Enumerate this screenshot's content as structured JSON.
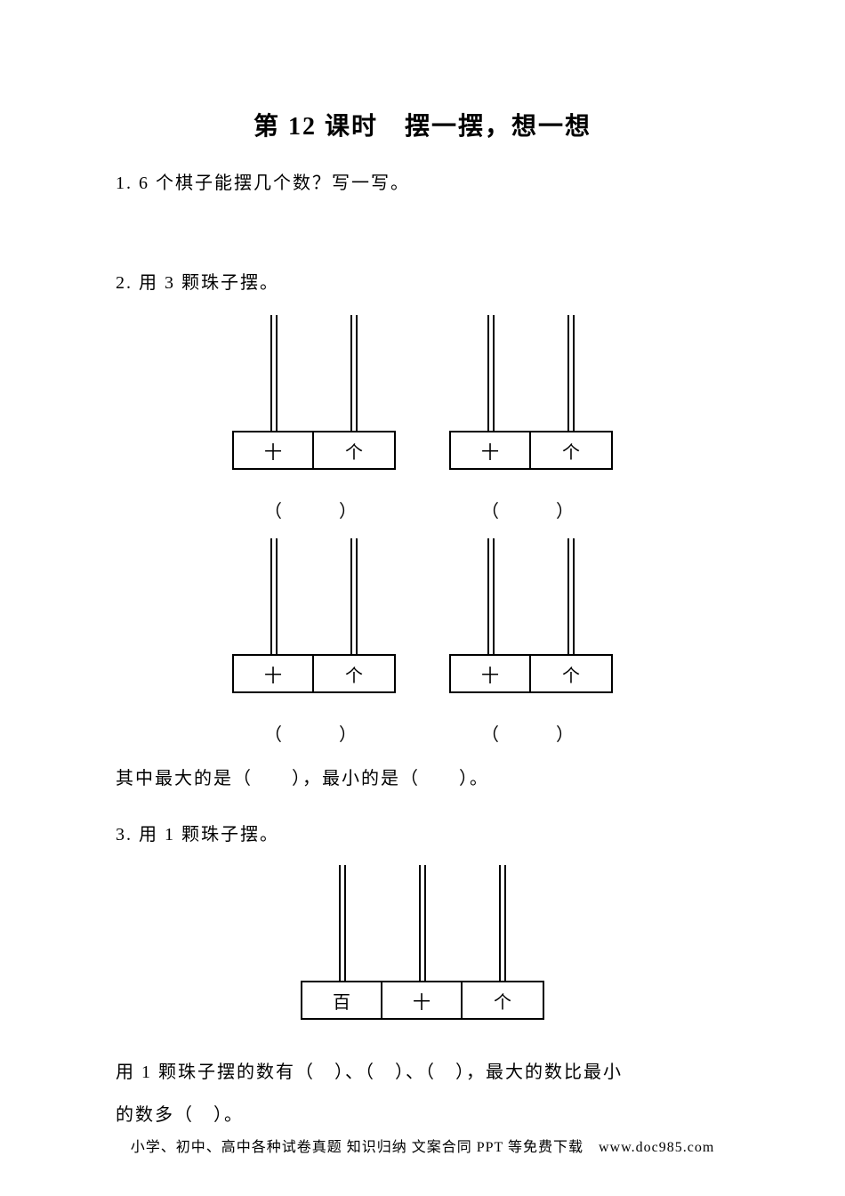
{
  "title": "第 12 课时　摆一摆，想一想",
  "q1": {
    "num": "1.",
    "text": "6 个棋子能摆几个数？写一写。"
  },
  "q2": {
    "num": "2.",
    "text": "用 3 颗珠子摆。",
    "place_ten": "十",
    "place_one": "个",
    "paren": "（　　）",
    "summary_a": "其中最大的是（　　），最小的是（　　）。"
  },
  "q3": {
    "num": "3.",
    "text": "用 1 颗珠子摆。",
    "place_hundred": "百",
    "place_ten": "十",
    "place_one": "个",
    "summary_a": "用 1 颗珠子摆的数有（　）、（　）、（　），最大的数比最小",
    "summary_b": "的数多（　）。"
  },
  "footer": "小学、初中、高中各种试卷真题 知识归纳 文案合同 PPT 等免费下载　www.doc985.com",
  "colors": {
    "text": "#000000",
    "bg": "#ffffff"
  }
}
